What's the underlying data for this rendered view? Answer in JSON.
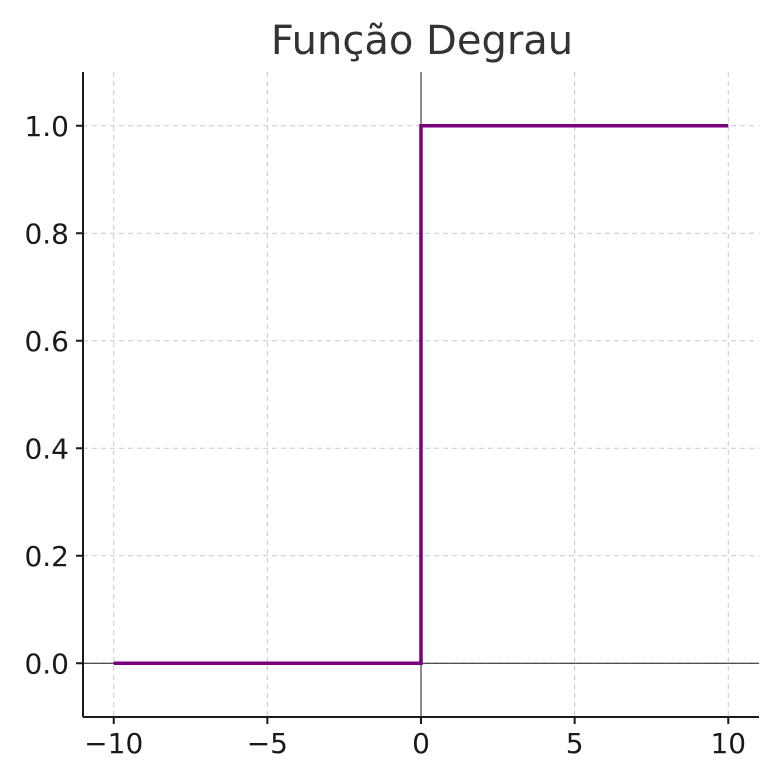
{
  "chart_data": {
    "type": "line",
    "title": "Função Degrau",
    "xlabel": "",
    "ylabel": "",
    "xlim": [
      -11,
      11
    ],
    "ylim": [
      -0.1,
      1.1
    ],
    "xticks": [
      -10,
      -5,
      0,
      5,
      10
    ],
    "xtick_labels": [
      "−10",
      "−5",
      "0",
      "5",
      "10"
    ],
    "yticks": [
      0.0,
      0.2,
      0.4,
      0.6,
      0.8,
      1.0
    ],
    "ytick_labels": [
      "0.0",
      "0.2",
      "0.4",
      "0.6",
      "0.8",
      "1.0"
    ],
    "grid": true,
    "reference_lines": {
      "x": 0,
      "y": 0
    },
    "series": [
      {
        "color": "#7b007b",
        "x": [
          -10,
          0,
          0,
          10
        ],
        "y": [
          0,
          0,
          1,
          1
        ]
      }
    ]
  }
}
